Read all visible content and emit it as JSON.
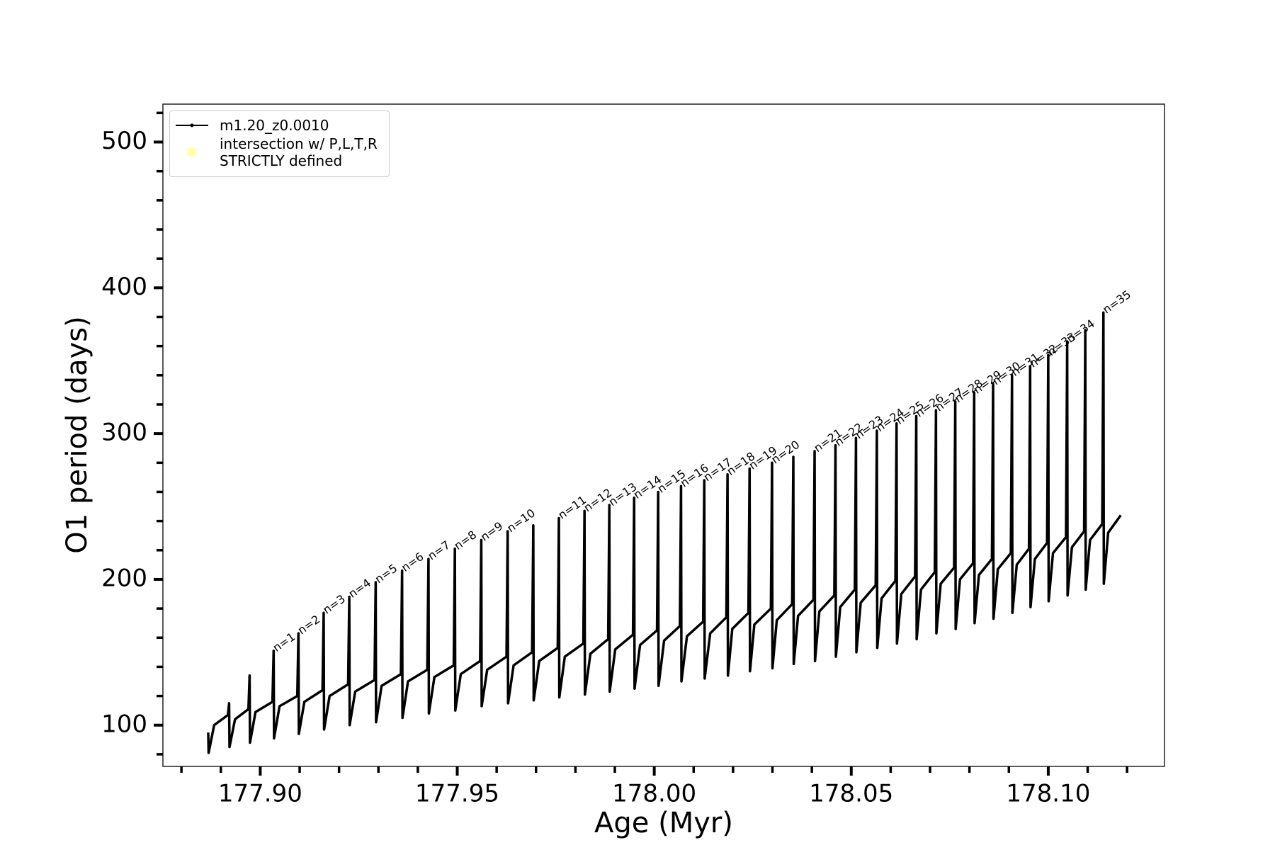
{
  "chart_data": {
    "type": "line",
    "xlabel": "Age (Myr)",
    "ylabel": "O1 period (days)",
    "xlim": [
      177.8753,
      178.1295
    ],
    "ylim": [
      71.7,
      526
    ],
    "xticks": [
      {
        "value": 177.9,
        "label": "177.90"
      },
      {
        "value": 177.95,
        "label": "177.95"
      },
      {
        "value": 178,
        "label": "178.00"
      },
      {
        "value": 178.05,
        "label": "178.05"
      },
      {
        "value": 178.1,
        "label": "178.10"
      }
    ],
    "xminorticks": [
      177.88,
      177.89,
      177.91,
      177.92,
      177.93,
      177.94,
      177.96,
      177.97,
      177.98,
      177.99,
      178.01,
      178.02,
      178.03,
      178.04,
      178.06,
      178.07,
      178.08,
      178.09,
      178.11,
      178.12
    ],
    "yticks": [
      100,
      200,
      300,
      400,
      500
    ],
    "yminorticks": [
      80,
      120,
      140,
      160,
      180,
      220,
      240,
      260,
      280,
      320,
      340,
      360,
      380,
      420,
      440,
      460,
      480,
      520
    ],
    "legend": "upper left",
    "series": [
      {
        "name": "m1.20_z0.0010",
        "color": "#000000",
        "x": [
          177.8868,
          177.8869,
          177.8883,
          177.8918,
          177.8921,
          177.8922,
          177.8936,
          177.897,
          177.8973,
          177.8974,
          177.8988,
          177.9031,
          177.9034,
          177.9035,
          177.9049,
          177.9094,
          177.9097,
          177.9098,
          177.9112,
          177.9158,
          177.9161,
          177.9162,
          177.9176,
          177.9223,
          177.9226,
          177.9227,
          177.9241,
          177.929,
          177.9293,
          177.9294,
          177.9308,
          177.9357,
          177.936,
          177.9361,
          177.9375,
          177.9424,
          177.9427,
          177.9428,
          177.9442,
          177.9491,
          177.9494,
          177.9495,
          177.9509,
          177.9558,
          177.9561,
          177.9562,
          177.9576,
          177.9625,
          177.9628,
          177.9629,
          177.9643,
          177.969,
          177.9693,
          177.9694,
          177.9708,
          177.9755,
          177.9758,
          177.9759,
          177.9773,
          177.982,
          177.9823,
          177.9824,
          177.9838,
          177.9883,
          177.9886,
          177.9887,
          177.9901,
          177.9946,
          177.9949,
          177.995,
          177.9964,
          178.0007,
          178.001,
          178.0011,
          178.0025,
          178.0065,
          178.0068,
          178.0069,
          178.0083,
          178.0124,
          178.0127,
          178.0128,
          178.0142,
          178.0183,
          178.0186,
          178.0187,
          178.0198,
          178.0239,
          178.0242,
          178.0243,
          178.0254,
          178.0296,
          178.0299,
          178.03,
          178.0311,
          178.035,
          178.0353,
          178.0354,
          178.0365,
          178.0404,
          178.0407,
          178.0408,
          178.0419,
          178.0457,
          178.046,
          178.0461,
          178.0472,
          178.0509,
          178.0512,
          178.0513,
          178.0524,
          178.0562,
          178.0565,
          178.0566,
          178.0577,
          178.0612,
          178.0615,
          178.0616,
          178.0627,
          178.0662,
          178.0665,
          178.0666,
          178.0677,
          178.0712,
          178.0715,
          178.0716,
          178.0727,
          178.0761,
          178.0764,
          178.0765,
          178.0776,
          178.0809,
          178.0812,
          178.0813,
          178.0824,
          178.0857,
          178.086,
          178.0861,
          178.0872,
          178.0905,
          178.0908,
          178.0909,
          178.092,
          178.0951,
          178.0954,
          178.0955,
          178.0966,
          178.0997,
          178.1,
          178.1001,
          178.1012,
          178.1045,
          178.1048,
          178.1049,
          178.106,
          178.1091,
          178.1094,
          178.1095,
          178.1106,
          178.1137,
          178.114,
          178.1141,
          178.1152,
          178.1184
        ],
        "values": [
          95,
          81,
          100,
          107,
          115,
          85,
          104,
          111,
          134,
          88,
          109,
          116,
          151,
          91,
          113,
          120,
          163,
          94,
          116,
          124,
          177,
          97,
          120,
          128,
          188,
          100,
          123,
          131,
          198,
          102,
          127,
          135,
          206,
          105,
          130,
          138,
          214,
          108,
          133,
          141,
          221,
          110,
          135,
          144,
          227,
          113,
          138,
          147,
          233,
          115,
          141,
          150,
          237,
          117,
          144,
          153,
          242,
          119,
          147,
          156,
          247,
          121,
          149,
          159,
          251,
          123,
          152,
          162,
          256,
          125,
          155,
          165,
          260,
          127,
          158,
          168,
          264,
          130,
          161,
          171,
          268,
          132,
          163,
          174,
          272,
          134,
          166,
          177,
          276,
          137,
          169,
          180,
          280,
          139,
          172,
          183,
          284,
          142,
          175,
          186,
          288,
          144,
          178,
          189,
          292,
          147,
          181,
          193,
          297,
          150,
          184,
          196,
          302,
          153,
          187,
          199,
          307,
          156,
          190,
          202,
          312,
          159,
          193,
          205,
          316,
          163,
          197,
          208,
          322,
          166,
          200,
          211,
          328,
          170,
          203,
          214,
          334,
          173,
          207,
          218,
          340,
          177,
          210,
          221,
          346,
          181,
          214,
          225,
          354,
          185,
          218,
          229,
          363,
          189,
          222,
          233,
          371,
          193,
          227,
          238,
          383,
          197,
          232,
          244
        ]
      },
      {
        "name": "intersection w/ P,L,T,R\nSTRICTLY defined",
        "color": "#ffffb0",
        "type": "scatter",
        "x": [],
        "values": []
      }
    ],
    "annotations": [
      {
        "text": "n=1",
        "x": 177.9034,
        "y": 151
      },
      {
        "text": "n=2",
        "x": 177.9097,
        "y": 163
      },
      {
        "text": "n=3",
        "x": 177.9161,
        "y": 177
      },
      {
        "text": "n=4",
        "x": 177.9226,
        "y": 188
      },
      {
        "text": "n=5",
        "x": 177.9293,
        "y": 198
      },
      {
        "text": "n=6",
        "x": 177.936,
        "y": 206
      },
      {
        "text": "n=7",
        "x": 177.9427,
        "y": 214
      },
      {
        "text": "n=8",
        "x": 177.9494,
        "y": 221
      },
      {
        "text": "n=9",
        "x": 177.9561,
        "y": 227
      },
      {
        "text": "n=10",
        "x": 177.9628,
        "y": 233
      },
      {
        "text": "n=11",
        "x": 177.9758,
        "y": 242
      },
      {
        "text": "n=12",
        "x": 177.9823,
        "y": 247
      },
      {
        "text": "n=13",
        "x": 177.9886,
        "y": 251
      },
      {
        "text": "n=14",
        "x": 177.9949,
        "y": 256
      },
      {
        "text": "n=15",
        "x": 178.001,
        "y": 260
      },
      {
        "text": "n=16",
        "x": 178.0068,
        "y": 264
      },
      {
        "text": "n=17",
        "x": 178.0127,
        "y": 268
      },
      {
        "text": "n=18",
        "x": 178.0186,
        "y": 272
      },
      {
        "text": "n=19",
        "x": 178.0242,
        "y": 276
      },
      {
        "text": "n=20",
        "x": 178.0299,
        "y": 280
      },
      {
        "text": "n=21",
        "x": 178.0407,
        "y": 288
      },
      {
        "text": "n=22",
        "x": 178.046,
        "y": 292
      },
      {
        "text": "n=23",
        "x": 178.0512,
        "y": 297
      },
      {
        "text": "n=24",
        "x": 178.0565,
        "y": 302
      },
      {
        "text": "n=25",
        "x": 178.0615,
        "y": 307
      },
      {
        "text": "n=26",
        "x": 178.0665,
        "y": 312
      },
      {
        "text": "n=27",
        "x": 178.0715,
        "y": 316
      },
      {
        "text": "n=28",
        "x": 178.0764,
        "y": 322
      },
      {
        "text": "n=29",
        "x": 178.0812,
        "y": 328
      },
      {
        "text": "n=30",
        "x": 178.086,
        "y": 334
      },
      {
        "text": "n=31",
        "x": 178.0908,
        "y": 340
      },
      {
        "text": "n=32",
        "x": 178.0954,
        "y": 346
      },
      {
        "text": "n=33",
        "x": 178.1,
        "y": 354
      },
      {
        "text": "n=34",
        "x": 178.1048,
        "y": 363
      },
      {
        "text": "n=35",
        "x": 178.114,
        "y": 383
      }
    ]
  }
}
